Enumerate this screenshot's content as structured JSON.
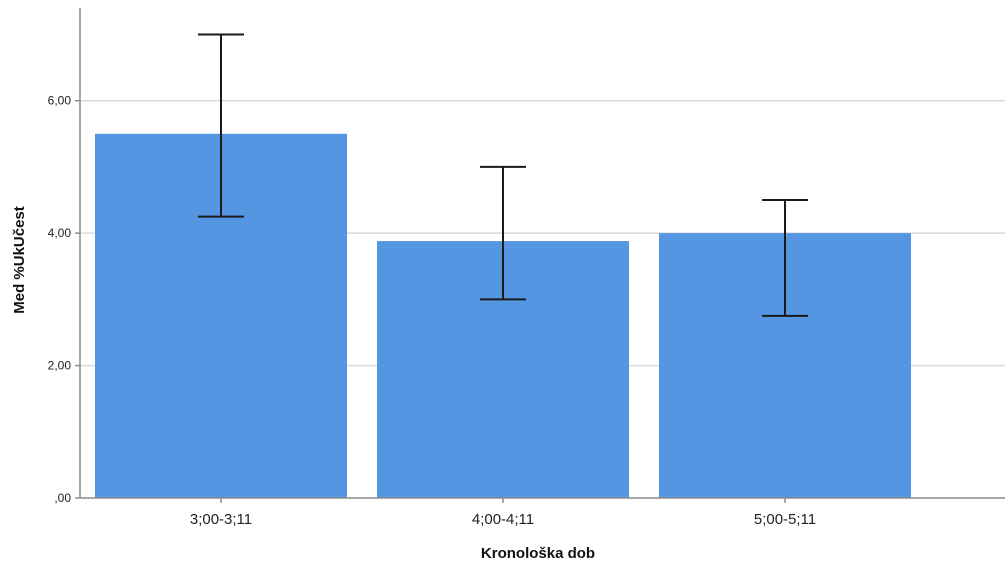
{
  "chart_data": {
    "type": "bar",
    "title": "",
    "xlabel": "Kronološka dob",
    "ylabel": "Med %UkUčest",
    "categories": [
      "3;00-3;11",
      "4;00-4;11",
      "5;00-5;11"
    ],
    "values": [
      5.5,
      3.88,
      4.0
    ],
    "error_low": [
      4.25,
      3.0,
      2.75
    ],
    "error_high": [
      7.0,
      5.0,
      4.5
    ],
    "ylim": [
      0,
      7.4
    ],
    "yticks": [
      0,
      2,
      4,
      6
    ],
    "ytick_labels": [
      ",00",
      "2,00",
      "4,00",
      "6,00"
    ],
    "grid": true,
    "legend": "none",
    "bar_color": "#5596e3",
    "error_bar_color": "#1a1a1a",
    "grid_color": "#d9d9d9",
    "axis_color": "#8c8c8c"
  }
}
